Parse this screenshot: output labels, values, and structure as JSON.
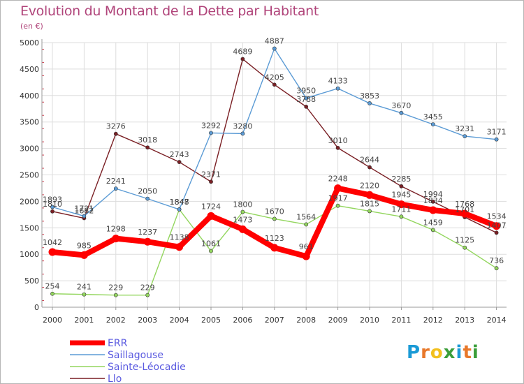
{
  "title": "Evolution du Montant de la Dette par Habitant",
  "subtitle": "(en €)",
  "logo": {
    "text": "Proxiti",
    "colors": [
      "#1a9ad6",
      "#e8782a",
      "#f2c01e",
      "#3a9e3a",
      "#1a9ad6",
      "#e8782a",
      "#3a9e3a"
    ]
  },
  "chart_data": {
    "type": "line",
    "x": [
      "2000",
      "2001",
      "2002",
      "2003",
      "2004",
      "2005",
      "2006",
      "2007",
      "2008",
      "2009",
      "2010",
      "2011",
      "2012",
      "2013",
      "2014"
    ],
    "yticks": [
      "0",
      "500",
      "1000",
      "1500",
      "2000",
      "2500",
      "3000",
      "3500",
      "4000",
      "4500",
      "5000"
    ],
    "ylim": [
      0,
      5000
    ],
    "grid": true,
    "legend_position": "bottom-left",
    "series": [
      {
        "name": "Llo",
        "color": "#7a1f24",
        "width": 1.4,
        "marker": 2.6,
        "labels": false,
        "values": [
          1810,
          1682,
          3276,
          3018,
          2743,
          2371,
          4689,
          4205,
          3788,
          3010,
          2644,
          2285,
          1994,
          1701,
          1407
        ]
      },
      {
        "name": "Sainte-Léocadie",
        "color": "#93d65e",
        "width": 1.4,
        "marker": 2.6,
        "labels": true,
        "values": [
          254,
          241,
          229,
          229,
          1848,
          1061,
          1800,
          1670,
          1564,
          1917,
          1815,
          1711,
          1459,
          1125,
          736
        ]
      },
      {
        "name": "Saillagouse",
        "color": "#5b9bd5",
        "width": 1.4,
        "marker": 2.6,
        "labels": true,
        "values": [
          1893,
          1721,
          2241,
          2050,
          1847,
          3292,
          3280,
          4887,
          3950,
          4133,
          3853,
          3670,
          3455,
          3231,
          3171
        ]
      },
      {
        "name": "ERR",
        "color": "#ff0000",
        "width": 8,
        "marker": 5.5,
        "labels": true,
        "values": [
          1042,
          985,
          1298,
          1237,
          1138,
          1724,
          1473,
          1123,
          961,
          2248,
          2120,
          1945,
          1834,
          1768,
          1534
        ]
      }
    ],
    "annotations": {
      "llo_labels": [
        "1810",
        "1682",
        "3276",
        "3018",
        "2743",
        "2371",
        "4689",
        "4205",
        "3788",
        "3010",
        "2644",
        "2285",
        "1994",
        "1701",
        "1407"
      ]
    },
    "legend": [
      "ERR",
      "Saillagouse",
      "Sainte-Léocadie",
      "Llo"
    ]
  }
}
